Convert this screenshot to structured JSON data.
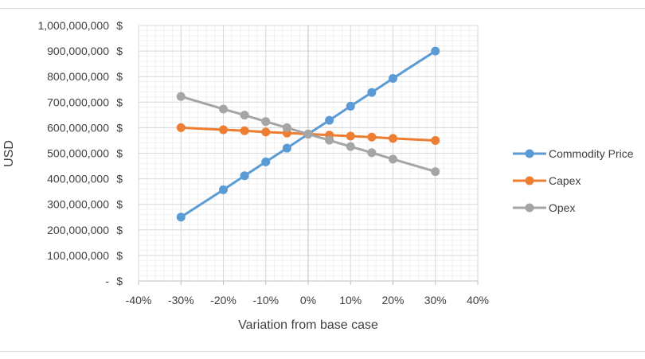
{
  "chart_data": {
    "type": "line",
    "title": "",
    "xlabel": "Variation from base case",
    "ylabel": "USD",
    "x_ticks": [
      "-40%",
      "-30%",
      "-20%",
      "-10%",
      "0%",
      "10%",
      "20%",
      "30%",
      "40%"
    ],
    "y_ticks": [
      "-",
      "100,000,000",
      "200,000,000",
      "300,000,000",
      "400,000,000",
      "500,000,000",
      "600,000,000",
      "700,000,000",
      "800,000,000",
      "900,000,000",
      "1,000,000,000"
    ],
    "y_tick_currency": "$",
    "xlim": [
      -0.4,
      0.4
    ],
    "ylim": [
      0,
      1000000000
    ],
    "grid": true,
    "legend_position": "right",
    "x": [
      -0.3,
      -0.2,
      -0.15,
      -0.1,
      -0.05,
      0,
      0.05,
      0.1,
      0.15,
      0.2,
      0.3
    ],
    "series": [
      {
        "name": "Commodity Price",
        "color": "#5B9BD5",
        "values": [
          250000000,
          357000000,
          412000000,
          466000000,
          520000000,
          575000000,
          629000000,
          684000000,
          738000000,
          793000000,
          900000000
        ]
      },
      {
        "name": "Capex",
        "color": "#ED7D31",
        "values": [
          600000000,
          592000000,
          588000000,
          583000000,
          579000000,
          575000000,
          571000000,
          567000000,
          563000000,
          558000000,
          550000000
        ]
      },
      {
        "name": "Opex",
        "color": "#A5A5A5",
        "values": [
          722000000,
          673000000,
          649000000,
          624000000,
          600000000,
          575000000,
          551000000,
          526000000,
          502000000,
          477000000,
          428000000
        ]
      }
    ]
  }
}
